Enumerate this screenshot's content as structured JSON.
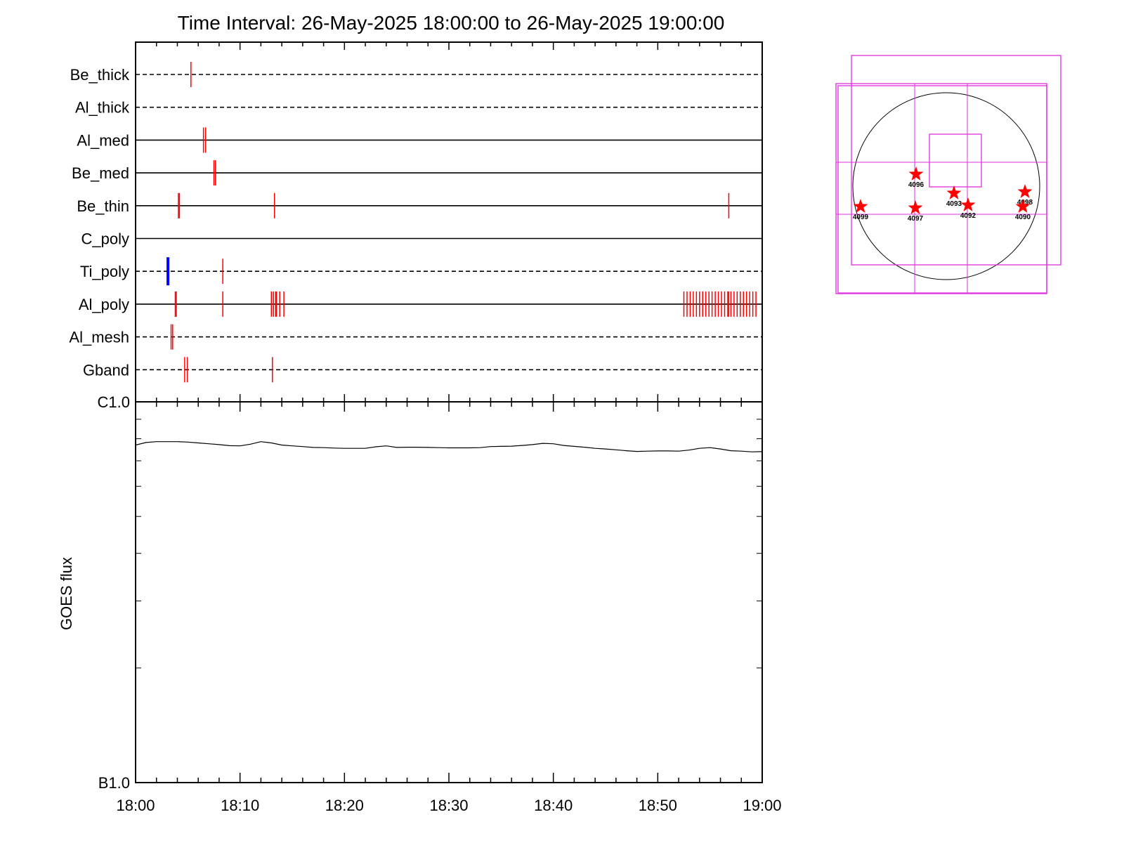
{
  "chart_data": [
    {
      "type": "timeline",
      "title": "Time Interval: 26-May-2025 18:00:00 to 26-May-2025 19:00:00",
      "x_range": [
        "18:00",
        "19:00"
      ],
      "x_tick_labels": [
        "18:00",
        "18:10",
        "18:20",
        "18:30",
        "18:40",
        "18:50",
        "19:00"
      ],
      "rows": [
        {
          "name": "Be_thick",
          "line": "dashed",
          "events": [
            5.3
          ]
        },
        {
          "name": "Al_thick",
          "line": "dashed",
          "events": []
        },
        {
          "name": "Al_med",
          "line": "solid",
          "events": [
            6.5,
            6.7
          ]
        },
        {
          "name": "Be_med",
          "line": "solid",
          "events": [
            7.5,
            7.65
          ]
        },
        {
          "name": "Be_thin",
          "line": "solid",
          "events": [
            4.1,
            4.2,
            13.3,
            56.8
          ]
        },
        {
          "name": "C_poly",
          "line": "solid",
          "events": []
        },
        {
          "name": "Ti_poly",
          "line": "dashed",
          "events": [
            8.35
          ],
          "events_blue": [
            3.1
          ]
        },
        {
          "name": "Al_poly",
          "line": "solid",
          "events": [
            3.8,
            3.9,
            8.35,
            13.0,
            13.2,
            13.4,
            13.5,
            13.8,
            14.2,
            52.5,
            52.8,
            53.1,
            53.4,
            53.7,
            54.0,
            54.3,
            54.6,
            54.9,
            55.2,
            55.5,
            55.8,
            56.1,
            56.4,
            56.7,
            56.8,
            57.0,
            57.3,
            57.6,
            57.9,
            58.2,
            58.5,
            58.8,
            59.1,
            59.4
          ]
        },
        {
          "name": "Al_mesh",
          "line": "dashed",
          "events": [
            3.4,
            3.55
          ]
        },
        {
          "name": "Gband",
          "line": "dashed",
          "events": [
            4.7,
            4.95,
            13.1
          ]
        }
      ]
    },
    {
      "type": "line",
      "ylabel": "GOES flux",
      "y_scale": "log",
      "ylim": [
        1e-07,
        1e-06
      ],
      "y_tick_labels": [
        "B1.0",
        "C1.0"
      ],
      "x_tick_labels": [
        "18:00",
        "18:10",
        "18:20",
        "18:30",
        "18:40",
        "18:50",
        "19:00"
      ],
      "x": [
        0,
        1,
        2,
        3,
        4,
        5,
        6,
        7,
        8,
        9,
        10,
        11,
        12,
        13,
        14,
        15,
        16,
        17,
        18,
        19,
        20,
        21,
        22,
        23,
        24,
        25,
        26,
        27,
        28,
        29,
        30,
        31,
        32,
        33,
        34,
        35,
        36,
        37,
        38,
        39,
        40,
        41,
        42,
        43,
        44,
        45,
        46,
        47,
        48,
        49,
        50,
        51,
        52,
        53,
        54,
        55,
        56,
        57,
        58,
        59,
        60
      ],
      "values": [
        7.7e-07,
        7.82e-07,
        7.86e-07,
        7.86e-07,
        7.86e-07,
        7.84e-07,
        7.8e-07,
        7.76e-07,
        7.72e-07,
        7.67e-07,
        7.66e-07,
        7.74e-07,
        7.86e-07,
        7.8e-07,
        7.7e-07,
        7.66e-07,
        7.63e-07,
        7.59e-07,
        7.58e-07,
        7.56e-07,
        7.55e-07,
        7.55e-07,
        7.55e-07,
        7.62e-07,
        7.66e-07,
        7.59e-07,
        7.6e-07,
        7.6e-07,
        7.59e-07,
        7.58e-07,
        7.57e-07,
        7.57e-07,
        7.57e-07,
        7.58e-07,
        7.63e-07,
        7.64e-07,
        7.65e-07,
        7.68e-07,
        7.72e-07,
        7.78e-07,
        7.76e-07,
        7.68e-07,
        7.64e-07,
        7.6e-07,
        7.55e-07,
        7.52e-07,
        7.48e-07,
        7.44e-07,
        7.41e-07,
        7.42e-07,
        7.43e-07,
        7.43e-07,
        7.42e-07,
        7.47e-07,
        7.55e-07,
        7.58e-07,
        7.52e-07,
        7.44e-07,
        7.42e-07,
        7.39e-07,
        7.4e-07
      ]
    },
    {
      "type": "solar_map",
      "colors": {
        "fov": "#e030e0",
        "star": "#ff0000",
        "disk": "#000000"
      },
      "active_regions": [
        {
          "label": "4096"
        },
        {
          "label": "4093"
        },
        {
          "label": "4098"
        },
        {
          "label": "4099"
        },
        {
          "label": "4097"
        },
        {
          "label": "4092"
        },
        {
          "label": "4090"
        }
      ]
    }
  ]
}
